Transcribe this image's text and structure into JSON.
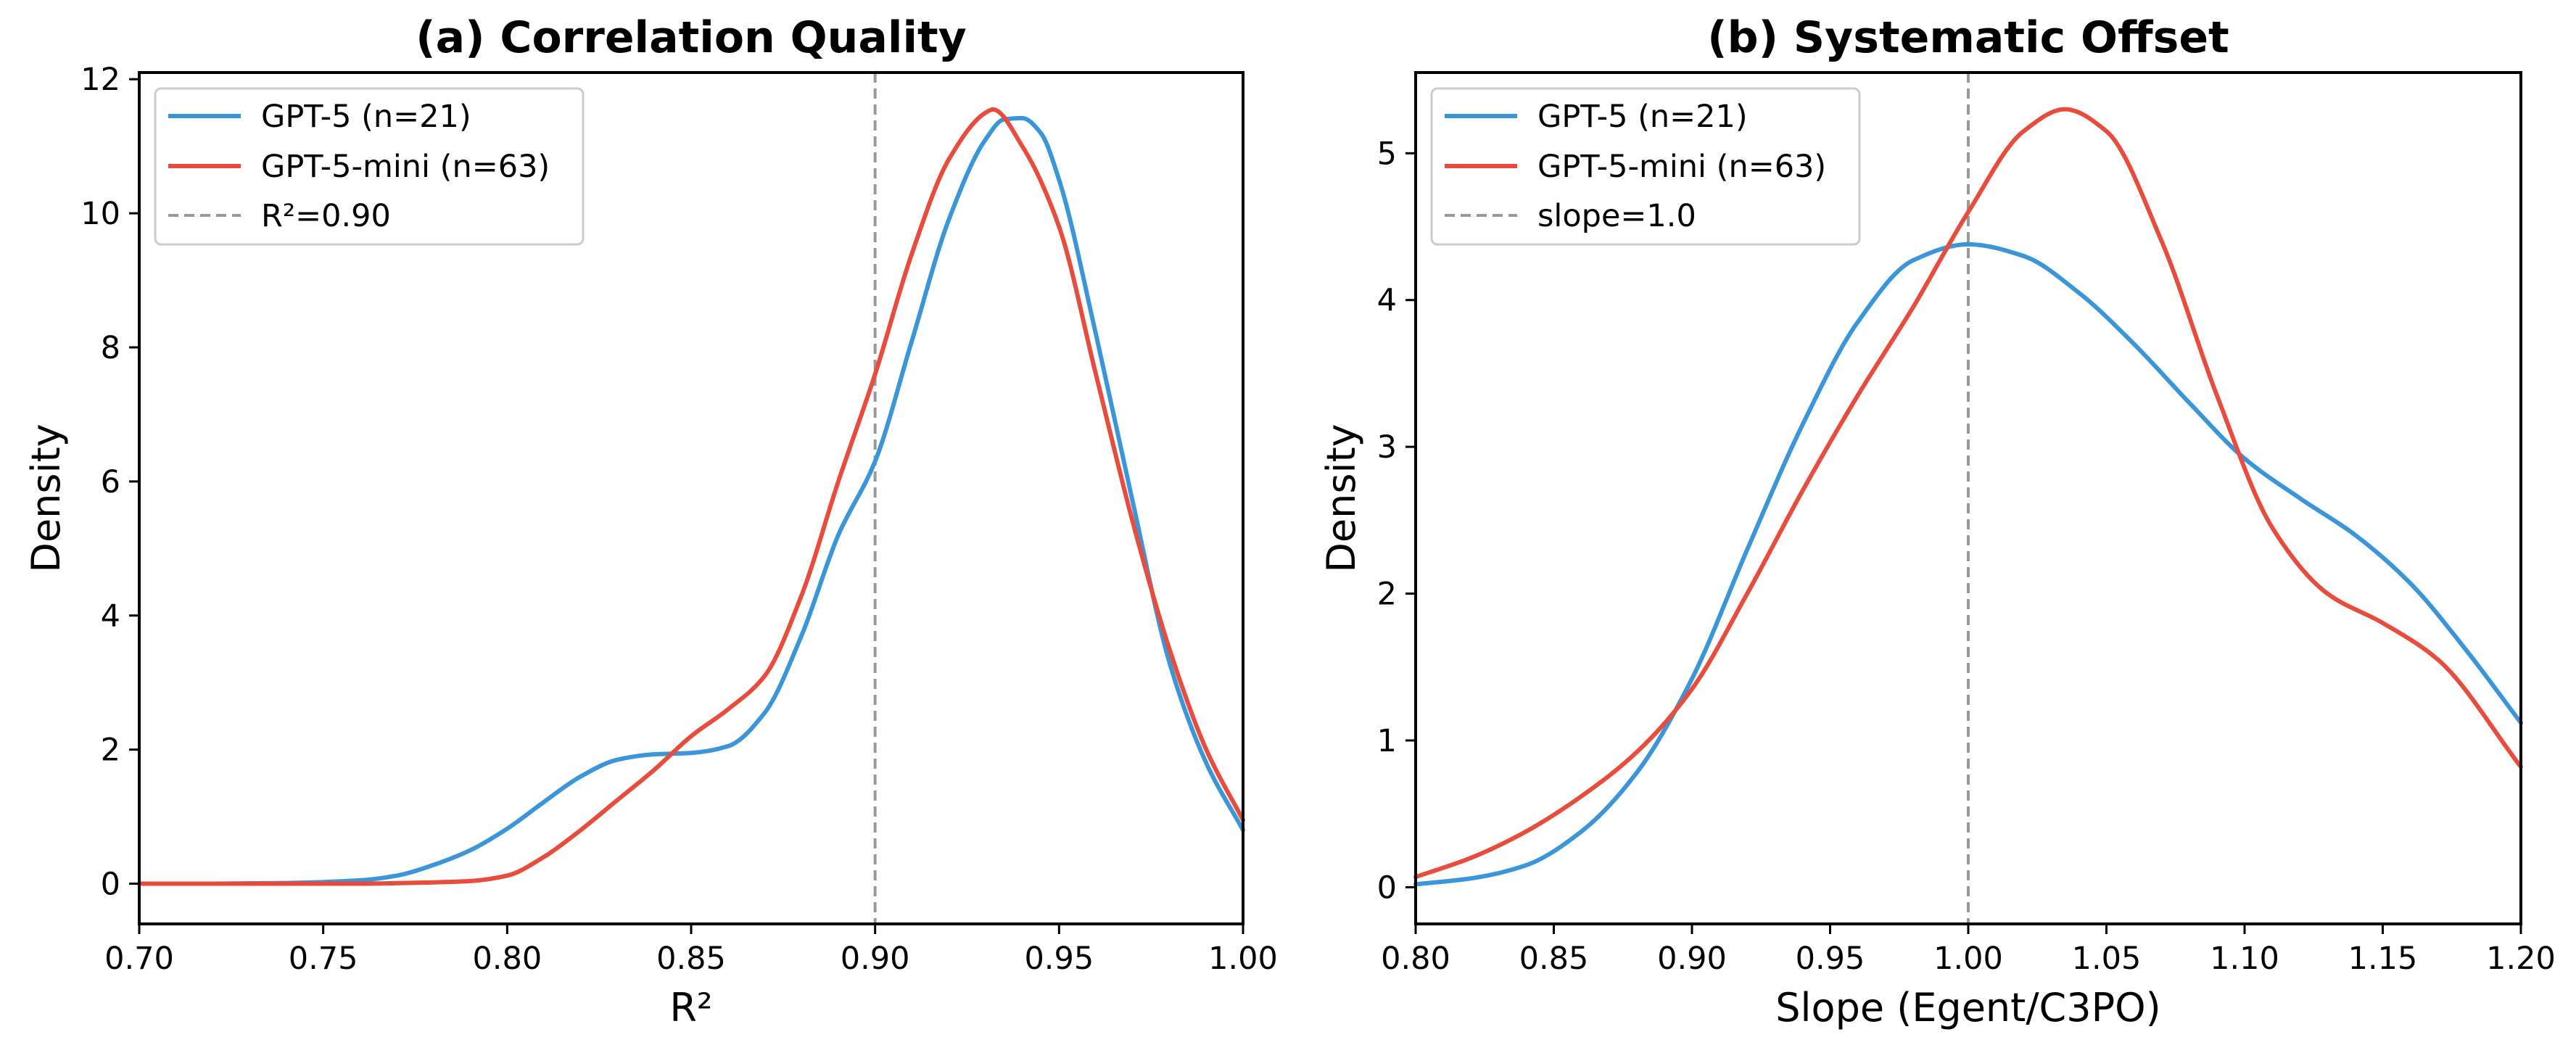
{
  "colors": {
    "gpt5": "#3a96d9",
    "gpt5mini": "#e74c3c",
    "ref": "#999999",
    "frame": "#000000",
    "legend_border": "#cccccc"
  },
  "chart_data": [
    {
      "type": "line",
      "title": "(a) Correlation Quality",
      "xlabel": "R²",
      "ylabel": "Density",
      "xlim": [
        0.7,
        1.0
      ],
      "ylim": [
        -0.6,
        12.1
      ],
      "x_ticks": [
        0.7,
        0.75,
        0.8,
        0.85,
        0.9,
        0.95,
        1.0
      ],
      "x_tick_labels": [
        "0.70",
        "0.75",
        "0.80",
        "0.85",
        "0.90",
        "0.95",
        "1.00"
      ],
      "y_ticks": [
        0,
        2,
        4,
        6,
        8,
        10,
        12
      ],
      "y_tick_labels": [
        "0",
        "2",
        "4",
        "6",
        "8",
        "10",
        "12"
      ],
      "legend_position": "top-left",
      "reference_line": {
        "x": 0.9,
        "label": "R²=0.90"
      },
      "series": [
        {
          "name": "GPT-5 (n=21)",
          "color_key": "gpt5",
          "x": [
            0.7,
            0.72,
            0.74,
            0.76,
            0.77,
            0.78,
            0.79,
            0.8,
            0.81,
            0.82,
            0.83,
            0.84,
            0.85,
            0.86,
            0.87,
            0.88,
            0.89,
            0.9,
            0.91,
            0.92,
            0.93,
            0.935,
            0.94,
            0.945,
            0.95,
            0.96,
            0.97,
            0.98,
            0.99,
            1.0
          ],
          "y": [
            0.0,
            0.0,
            0.01,
            0.05,
            0.12,
            0.28,
            0.5,
            0.82,
            1.22,
            1.6,
            1.85,
            1.93,
            1.95,
            2.05,
            2.55,
            3.7,
            5.2,
            6.3,
            8.1,
            9.9,
            11.1,
            11.4,
            11.42,
            11.2,
            10.5,
            8.2,
            5.7,
            3.3,
            1.8,
            0.8
          ]
        },
        {
          "name": "GPT-5-mini (n=63)",
          "color_key": "gpt5mini",
          "x": [
            0.7,
            0.72,
            0.74,
            0.76,
            0.78,
            0.79,
            0.8,
            0.81,
            0.82,
            0.83,
            0.84,
            0.85,
            0.86,
            0.87,
            0.88,
            0.89,
            0.9,
            0.91,
            0.92,
            0.93,
            0.932,
            0.94,
            0.95,
            0.96,
            0.97,
            0.98,
            0.99,
            1.0
          ],
          "y": [
            0.0,
            0.0,
            0.0,
            0.0,
            0.02,
            0.04,
            0.12,
            0.4,
            0.8,
            1.25,
            1.7,
            2.2,
            2.6,
            3.1,
            4.3,
            6.0,
            7.6,
            9.4,
            10.8,
            11.5,
            11.55,
            11.0,
            9.8,
            7.6,
            5.4,
            3.5,
            2.0,
            0.95
          ]
        }
      ]
    },
    {
      "type": "line",
      "title": "(b) Systematic Offset",
      "xlabel": "Slope (Egent/C3PO)",
      "ylabel": "Density",
      "xlim": [
        0.8,
        1.2
      ],
      "ylim": [
        -0.25,
        5.55
      ],
      "x_ticks": [
        0.8,
        0.85,
        0.9,
        0.95,
        1.0,
        1.05,
        1.1,
        1.15,
        1.2
      ],
      "x_tick_labels": [
        "0.80",
        "0.85",
        "0.90",
        "0.95",
        "1.00",
        "1.05",
        "1.10",
        "1.15",
        "1.20"
      ],
      "y_ticks": [
        0,
        1,
        2,
        3,
        4,
        5
      ],
      "y_tick_labels": [
        "0",
        "1",
        "2",
        "3",
        "4",
        "5"
      ],
      "legend_position": "top-left",
      "reference_line": {
        "x": 1.0,
        "label": "slope=1.0"
      },
      "series": [
        {
          "name": "GPT-5 (n=21)",
          "color_key": "gpt5",
          "x": [
            0.8,
            0.82,
            0.84,
            0.86,
            0.88,
            0.9,
            0.92,
            0.94,
            0.96,
            0.98,
            1.0,
            1.02,
            1.04,
            1.06,
            1.08,
            1.1,
            1.12,
            1.14,
            1.16,
            1.18,
            1.2
          ],
          "y": [
            0.02,
            0.06,
            0.15,
            0.38,
            0.78,
            1.42,
            2.3,
            3.15,
            3.85,
            4.27,
            4.38,
            4.3,
            4.05,
            3.7,
            3.3,
            2.92,
            2.65,
            2.4,
            2.07,
            1.62,
            1.12
          ]
        },
        {
          "name": "GPT-5-mini (n=63)",
          "color_key": "gpt5mini",
          "x": [
            0.8,
            0.82,
            0.84,
            0.86,
            0.88,
            0.9,
            0.92,
            0.94,
            0.96,
            0.98,
            1.0,
            1.02,
            1.035,
            1.05,
            1.07,
            1.09,
            1.11,
            1.13,
            1.15,
            1.17,
            1.2
          ],
          "y": [
            0.07,
            0.2,
            0.38,
            0.62,
            0.92,
            1.35,
            2.0,
            2.7,
            3.35,
            3.95,
            4.6,
            5.15,
            5.3,
            5.15,
            4.4,
            3.35,
            2.45,
            2.0,
            1.8,
            1.55,
            0.82
          ]
        }
      ]
    }
  ],
  "legends": [
    {
      "items": [
        {
          "label": "GPT-5 (n=21)"
        },
        {
          "label": "GPT-5-mini (n=63)"
        },
        {
          "label": "R²=0.90"
        }
      ]
    },
    {
      "items": [
        {
          "label": "GPT-5 (n=21)"
        },
        {
          "label": "GPT-5-mini (n=63)"
        },
        {
          "label": "slope=1.0"
        }
      ]
    }
  ]
}
